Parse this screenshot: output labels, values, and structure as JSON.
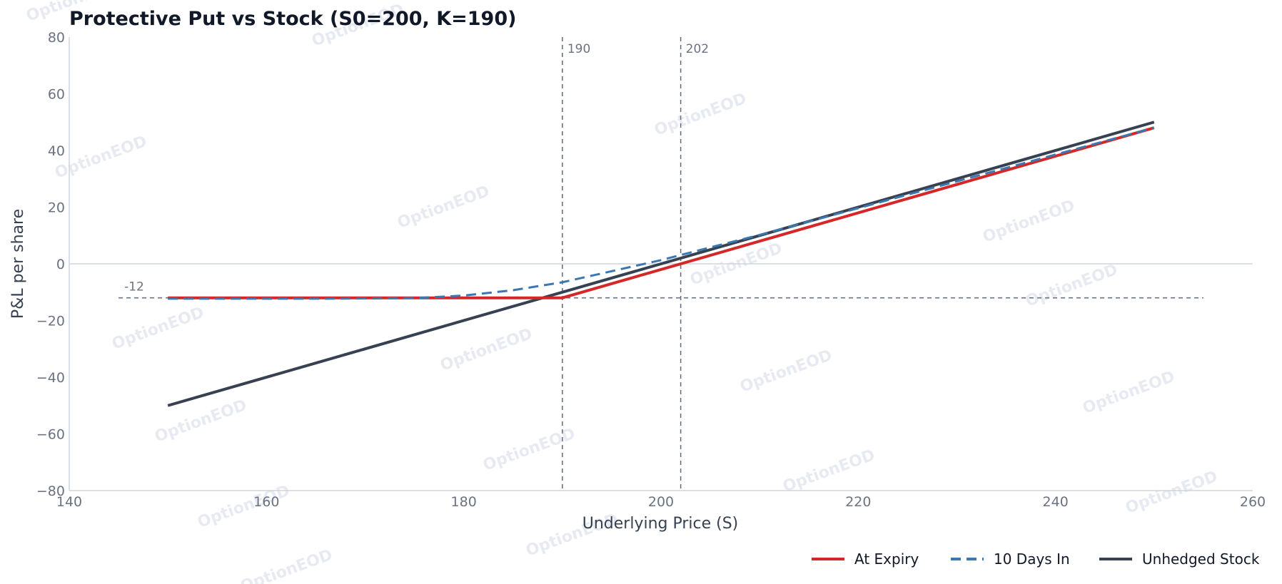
{
  "watermark": "OptionEOD",
  "chart_data": {
    "type": "line",
    "title": "Protective Put vs Stock (S0=200, K=190)",
    "xlabel": "Underlying Price (S)",
    "ylabel": "P&L per share",
    "xlim": [
      140,
      260
    ],
    "ylim": [
      -80,
      80
    ],
    "x_ticks": [
      140,
      160,
      180,
      200,
      220,
      240,
      260
    ],
    "y_ticks": [
      -80,
      -60,
      -40,
      -20,
      0,
      20,
      40,
      60,
      80
    ],
    "x_tick_labels": [
      "140",
      "160",
      "180",
      "200",
      "220",
      "240",
      "260"
    ],
    "y_tick_labels": [
      "−80",
      "−60",
      "−40",
      "−20",
      "0",
      "20",
      "40",
      "60",
      "80"
    ],
    "grid": false,
    "legend_position": "bottom-right",
    "zero_line": 0,
    "reference_lines": [
      {
        "orientation": "vertical",
        "value": 190,
        "label": "190"
      },
      {
        "orientation": "vertical",
        "value": 202,
        "label": "202"
      },
      {
        "orientation": "horizontal",
        "value": -12,
        "label": "-12",
        "x_range": [
          145,
          255
        ]
      }
    ],
    "series": [
      {
        "name": "At Expiry",
        "style": "solid",
        "color": "#d62728",
        "x": [
          150,
          190,
          250
        ],
        "y": [
          -12,
          -12,
          48
        ]
      },
      {
        "name": "10 Days In",
        "style": "dashed",
        "color": "#3b78b0",
        "x": [
          150,
          165,
          175,
          180,
          185,
          190,
          195,
          200,
          205,
          210,
          250
        ],
        "y": [
          -12.3,
          -12.3,
          -12.1,
          -11.2,
          -9.3,
          -6.5,
          -2.6,
          1.3,
          5.8,
          10.2,
          48
        ]
      },
      {
        "name": "Unhedged Stock",
        "style": "solid",
        "color": "#374151",
        "x": [
          150,
          250
        ],
        "y": [
          -50,
          50
        ]
      }
    ]
  }
}
